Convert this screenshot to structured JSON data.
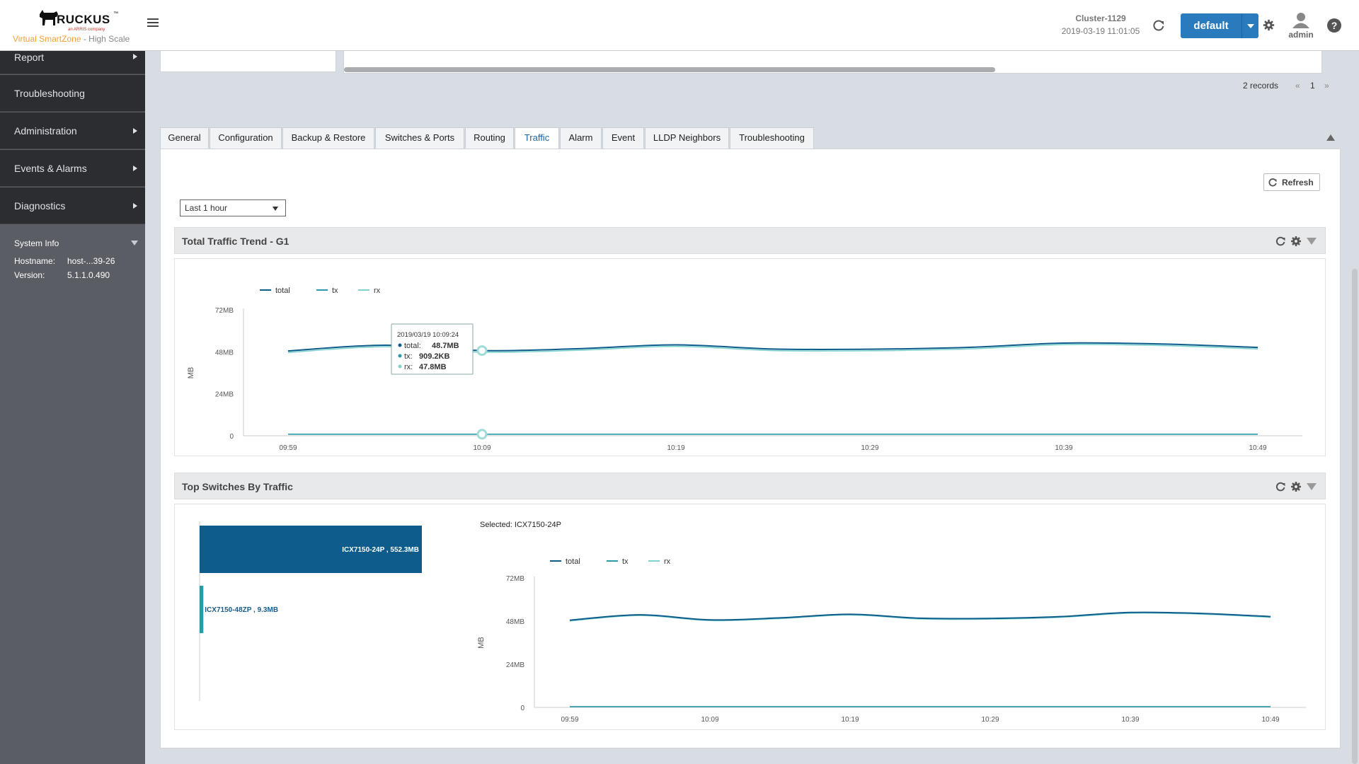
{
  "header": {
    "logo_text": "RUCKUS",
    "logo_sub": "an ARRIS company",
    "product_brand": "Virtual SmartZone",
    "product_tier": "- High Scale",
    "cluster_name": "Cluster-1129",
    "datetime": "2019-03-19  11:01:05",
    "domain": "default",
    "user": "admin",
    "help": "?"
  },
  "sidebar": {
    "items": [
      {
        "label": "Report",
        "has_arrow": true
      },
      {
        "label": "Troubleshooting",
        "has_arrow": false
      },
      {
        "label": "Administration",
        "has_arrow": true
      },
      {
        "label": "Events & Alarms",
        "has_arrow": true
      },
      {
        "label": "Diagnostics",
        "has_arrow": true
      }
    ],
    "system_info": {
      "title": "System Info",
      "hostname_label": "Hostname:",
      "hostname": "host-...39-26",
      "version_label": "Version:",
      "version": "5.1.1.0.490"
    }
  },
  "table_footer": {
    "records": "2 records",
    "prev": "«",
    "page": "1",
    "next": "»"
  },
  "tabs": [
    {
      "label": "General",
      "active": false
    },
    {
      "label": "Configuration",
      "active": false
    },
    {
      "label": "Backup & Restore",
      "active": false
    },
    {
      "label": "Switches & Ports",
      "active": false
    },
    {
      "label": "Routing",
      "active": false
    },
    {
      "label": "Traffic",
      "active": true
    },
    {
      "label": "Alarm",
      "active": false
    },
    {
      "label": "Event",
      "active": false
    },
    {
      "label": "LLDP Neighbors",
      "active": false
    },
    {
      "label": "Troubleshooting",
      "active": false
    }
  ],
  "controls": {
    "refresh_label": "Refresh",
    "time_range": "Last 1 hour"
  },
  "colors": {
    "total": "#0d5c8c",
    "tx": "#2a9aa8",
    "rx": "#7fd3cf",
    "accent": "#2a7bbd"
  },
  "widgets": {
    "total_traffic": {
      "title": "Total Traffic Trend - G1"
    },
    "top_switches": {
      "title": "Top Switches By Traffic",
      "selected": "Selected: ICX7150-24P"
    }
  },
  "chart_data": [
    {
      "type": "line",
      "ylabel": "MB",
      "y_ticks": [
        "0",
        "24MB",
        "48MB",
        "72MB"
      ],
      "ylim": [
        0,
        72
      ],
      "x": [
        "09:59",
        "10:04",
        "10:09",
        "10:14",
        "10:19",
        "10:24",
        "10:29",
        "10:34",
        "10:39",
        "10:44",
        "10:49"
      ],
      "x_tick_labels": [
        "09:59",
        "10:09",
        "10:19",
        "10:29",
        "10:39",
        "10:49"
      ],
      "series": [
        {
          "name": "total",
          "values": [
            48.5,
            51.8,
            48.7,
            49.8,
            52.0,
            49.6,
            49.5,
            50.5,
            53.0,
            52.5,
            50.5
          ]
        },
        {
          "name": "tx",
          "values": [
            0.9,
            0.9,
            0.9,
            0.9,
            0.9,
            0.9,
            0.9,
            0.9,
            0.9,
            0.9,
            0.9
          ]
        },
        {
          "name": "rx",
          "values": [
            47.6,
            50.9,
            47.8,
            48.9,
            51.1,
            48.7,
            48.6,
            49.6,
            52.1,
            51.6,
            49.6
          ]
        }
      ],
      "legend": "top-left",
      "tooltip": {
        "time": "2019/03/19 10:09:24",
        "rows": [
          {
            "label": "total:",
            "value": "48.7MB"
          },
          {
            "label": "tx:",
            "value": "909.2KB"
          },
          {
            "label": "rx:",
            "value": "47.8MB"
          }
        ]
      }
    },
    {
      "type": "bar",
      "orientation": "horizontal",
      "categories": [
        "ICX7150-24P",
        "ICX7150-48ZP"
      ],
      "values": [
        552.3,
        9.3
      ],
      "labels": [
        "ICX7150-24P , 552.3MB",
        "ICX7150-48ZP , 9.3MB"
      ]
    },
    {
      "type": "line",
      "ylabel": "MB",
      "y_ticks": [
        "0",
        "24MB",
        "48MB",
        "72MB"
      ],
      "ylim": [
        0,
        72
      ],
      "x": [
        "09:59",
        "10:04",
        "10:09",
        "10:14",
        "10:19",
        "10:24",
        "10:29",
        "10:34",
        "10:39",
        "10:44",
        "10:49"
      ],
      "x_tick_labels": [
        "09:59",
        "10:09",
        "10:19",
        "10:29",
        "10:39",
        "10:49"
      ],
      "series": [
        {
          "name": "total",
          "values": [
            48.5,
            51.5,
            48.7,
            49.8,
            51.8,
            49.6,
            49.5,
            50.5,
            52.8,
            52.3,
            50.5
          ]
        },
        {
          "name": "tx",
          "values": [
            0.4,
            0.4,
            0.4,
            0.4,
            0.4,
            0.4,
            0.4,
            0.4,
            0.4,
            0.4,
            0.4
          ]
        },
        {
          "name": "rx",
          "values": [
            48.1,
            51.1,
            48.3,
            49.4,
            51.4,
            49.2,
            49.1,
            50.1,
            52.4,
            51.9,
            50.1
          ]
        }
      ],
      "legend": "top-left"
    }
  ]
}
